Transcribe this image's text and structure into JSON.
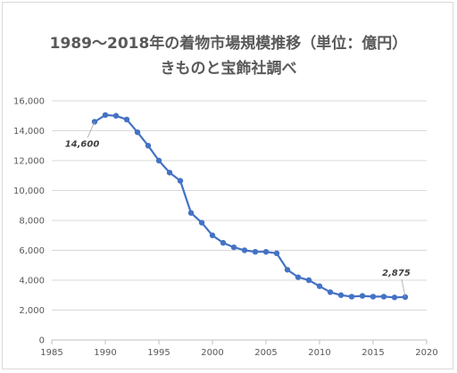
{
  "chart_data": {
    "type": "line",
    "title": "1989～2018年の着物市場規模推移（単位：億円）",
    "subtitle": "きものと宝飾社調べ",
    "xlabel": "",
    "ylabel": "",
    "xlim": [
      1985,
      2020
    ],
    "ylim": [
      0,
      16000
    ],
    "x_ticks": [
      1985,
      1990,
      1995,
      2000,
      2005,
      2010,
      2015,
      2020
    ],
    "y_ticks": [
      0,
      2000,
      4000,
      6000,
      8000,
      10000,
      12000,
      14000,
      16000
    ],
    "x_tick_labels": [
      "1985",
      "1990",
      "1995",
      "2000",
      "2005",
      "2010",
      "2015",
      "2020"
    ],
    "y_tick_labels": [
      "0",
      "2,000",
      "4,000",
      "6,000",
      "8,000",
      "10,000",
      "12,000",
      "14,000",
      "16,000"
    ],
    "grid": "horizontal",
    "legend": "none",
    "line_color": "#4472c4",
    "series": [
      {
        "x": [
          1989,
          1990,
          1991,
          1992,
          1993,
          1994,
          1995,
          1996,
          1997,
          1998,
          1999,
          2000,
          2001,
          2002,
          2003,
          2004,
          2005,
          2006,
          2007,
          2008,
          2009,
          2010,
          2011,
          2012,
          2013,
          2014,
          2015,
          2016,
          2017,
          2018
        ],
        "values": [
          14600,
          15050,
          15000,
          14750,
          13900,
          13000,
          12000,
          11200,
          10650,
          8500,
          7850,
          7000,
          6500,
          6200,
          6000,
          5900,
          5900,
          5800,
          4700,
          4200,
          4000,
          3600,
          3200,
          3000,
          2900,
          2950,
          2900,
          2900,
          2850,
          2875
        ]
      }
    ],
    "annotations": [
      {
        "x": 1989,
        "value": 14600,
        "text": "14,600"
      },
      {
        "x": 2018,
        "value": 2875,
        "text": "2,875"
      }
    ]
  }
}
